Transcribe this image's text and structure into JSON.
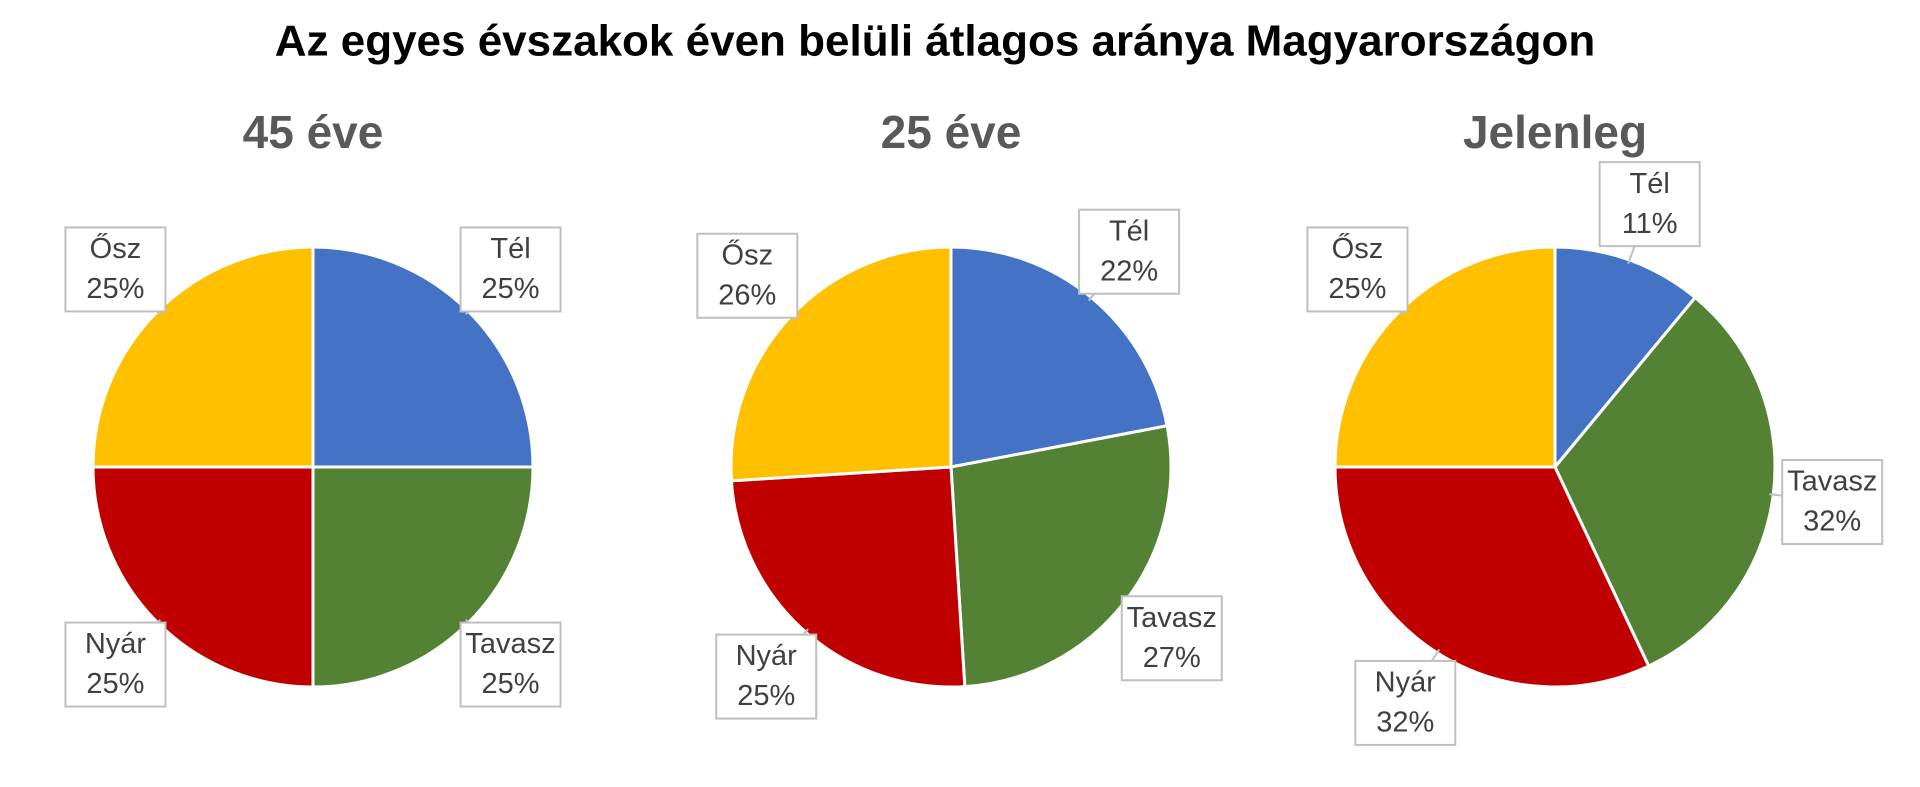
{
  "title": "Az egyes évszakok éven belüli átlagos aránya Magyarországon",
  "chart_data": [
    {
      "type": "pie",
      "title": "45 éve",
      "categories": [
        "Tél",
        "Tavasz",
        "Nyár",
        "Ősz"
      ],
      "values": [
        25,
        25,
        25,
        25
      ],
      "value_labels": [
        "25%",
        "25%",
        "25%",
        "25%"
      ],
      "colors": [
        "#4472c4",
        "#548235",
        "#c00000",
        "#ffc000"
      ]
    },
    {
      "type": "pie",
      "title": "25 éve",
      "categories": [
        "Tél",
        "Tavasz",
        "Nyár",
        "Ősz"
      ],
      "values": [
        22,
        27,
        25,
        26
      ],
      "value_labels": [
        "22%",
        "27%",
        "25%",
        "26%"
      ],
      "colors": [
        "#4472c4",
        "#548235",
        "#c00000",
        "#ffc000"
      ]
    },
    {
      "type": "pie",
      "title": "Jelenleg",
      "categories": [
        "Tél",
        "Tavasz",
        "Nyár",
        "Ősz"
      ],
      "values": [
        11,
        32,
        32,
        25
      ],
      "value_labels": [
        "11%",
        "32%",
        "32%",
        "25%"
      ],
      "colors": [
        "#4472c4",
        "#548235",
        "#c00000",
        "#ffc000"
      ]
    }
  ]
}
